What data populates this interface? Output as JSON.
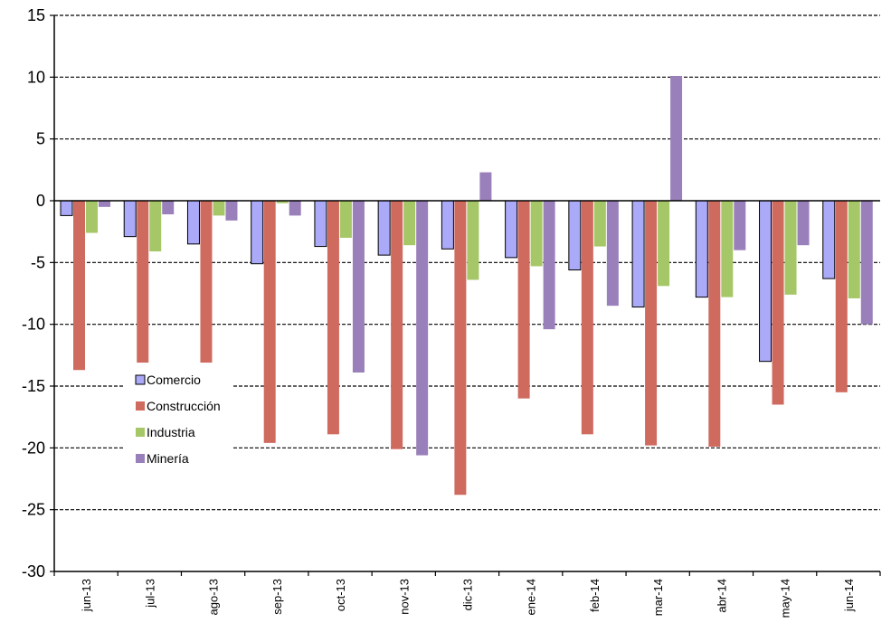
{
  "chart_data": {
    "type": "bar",
    "title": "",
    "xlabel": "",
    "ylabel": "",
    "ylim": [
      -30,
      15
    ],
    "yticks": [
      15,
      10,
      5,
      0,
      -5,
      -10,
      -15,
      -20,
      -25,
      -30
    ],
    "ytick_labels": [
      "15",
      "10",
      "5",
      "0",
      "-5",
      "-10",
      "-15",
      "-20",
      "-25",
      "-30"
    ],
    "grid": true,
    "grid_style": "dashed",
    "legend_position": "left",
    "categories": [
      "jun-13",
      "jul-13",
      "ago-13",
      "sep-13",
      "oct-13",
      "nov-13",
      "dic-13",
      "ene-14",
      "feb-14",
      "mar-14",
      "abr-14",
      "may-14",
      "jun-14"
    ],
    "series": [
      {
        "name": "Comercio",
        "color": "#AAAAF8",
        "values": [
          -1.2,
          -2.9,
          -3.5,
          -5.1,
          -3.7,
          -4.4,
          -3.9,
          -4.6,
          -5.6,
          -8.6,
          -7.8,
          -13.0,
          -6.3
        ]
      },
      {
        "name": "Construcción",
        "color": "#CF6A5F",
        "values": [
          -13.7,
          -13.1,
          -13.1,
          -19.6,
          -18.9,
          -20.1,
          -23.8,
          -16.0,
          -18.9,
          -19.8,
          -19.9,
          -16.5,
          -15.5
        ]
      },
      {
        "name": "Industria",
        "color": "#A6C768",
        "values": [
          -2.6,
          -4.1,
          -1.2,
          -0.2,
          -3.0,
          -3.6,
          -6.4,
          -5.3,
          -3.7,
          -6.9,
          -7.8,
          -7.6,
          -7.9
        ]
      },
      {
        "name": "Minería",
        "color": "#9A80BA",
        "values": [
          -0.5,
          -1.1,
          -1.6,
          -1.2,
          -13.9,
          -20.6,
          2.3,
          -10.4,
          -8.5,
          10.1,
          -4.0,
          -3.6,
          -10.0
        ]
      }
    ]
  }
}
